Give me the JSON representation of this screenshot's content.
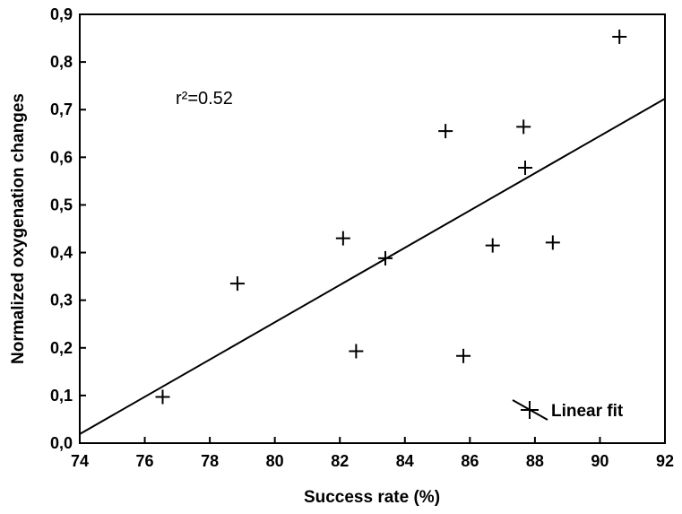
{
  "chart_data": {
    "type": "scatter",
    "xlabel": "Success rate (%)",
    "ylabel": "Normalized oxygenation changes",
    "xlim": [
      74,
      92
    ],
    "ylim": [
      0,
      0.9
    ],
    "xticks": [
      "74",
      "76",
      "78",
      "80",
      "82",
      "84",
      "86",
      "88",
      "90",
      "92"
    ],
    "yticks": [
      "0,0",
      "0,1",
      "0,2",
      "0,3",
      "0,4",
      "0,5",
      "0,6",
      "0,7",
      "0,8",
      "0,9"
    ],
    "points": [
      {
        "x": 76.55,
        "y": 0.097
      },
      {
        "x": 78.85,
        "y": 0.335
      },
      {
        "x": 82.1,
        "y": 0.43
      },
      {
        "x": 82.5,
        "y": 0.193
      },
      {
        "x": 83.4,
        "y": 0.388
      },
      {
        "x": 85.25,
        "y": 0.655
      },
      {
        "x": 85.8,
        "y": 0.183
      },
      {
        "x": 86.7,
        "y": 0.415
      },
      {
        "x": 87.65,
        "y": 0.664
      },
      {
        "x": 87.7,
        "y": 0.578
      },
      {
        "x": 88.55,
        "y": 0.421
      },
      {
        "x": 90.6,
        "y": 0.853
      }
    ],
    "fit": {
      "x": [
        74,
        92
      ],
      "y": [
        0.019,
        0.723
      ]
    },
    "annotation": "r²=0.52",
    "legend": {
      "label": "Linear fit",
      "placement": "bottom-right"
    },
    "grid": false
  }
}
